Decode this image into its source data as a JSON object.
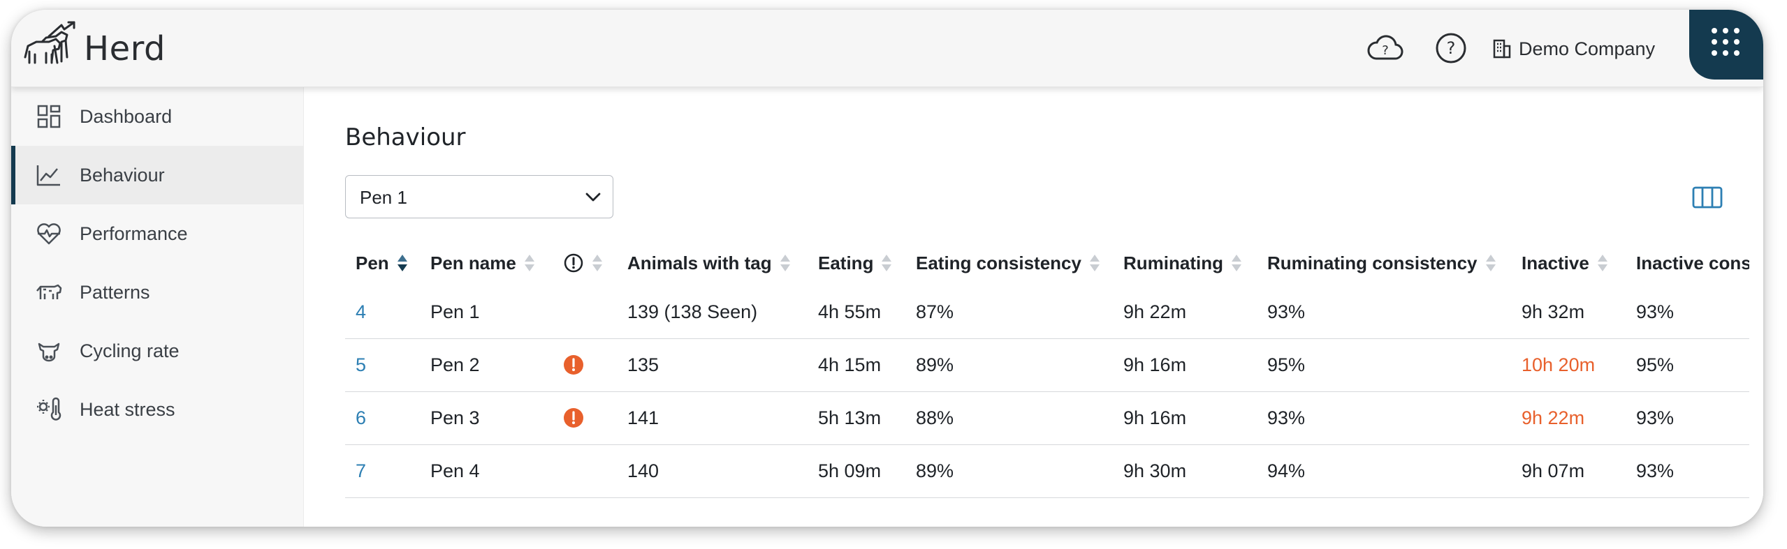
{
  "app": {
    "title": "Herd"
  },
  "header": {
    "company_label": "Demo Company"
  },
  "sidebar": {
    "items": [
      {
        "label": "Dashboard",
        "icon": "dashboard-grid-icon",
        "active": false
      },
      {
        "label": "Behaviour",
        "icon": "line-chart-icon",
        "active": true
      },
      {
        "label": "Performance",
        "icon": "heart-pulse-icon",
        "active": false
      },
      {
        "label": "Patterns",
        "icon": "cow-icon",
        "active": false
      },
      {
        "label": "Cycling rate",
        "icon": "cow-face-icon",
        "active": false
      },
      {
        "label": "Heat stress",
        "icon": "thermometer-icon",
        "active": false
      }
    ]
  },
  "main": {
    "title": "Behaviour",
    "pen_select": {
      "value": "Pen 1"
    },
    "table": {
      "columns": [
        "Pen",
        "Pen name",
        "",
        "Animals with tag",
        "Eating",
        "Eating consistency",
        "Ruminating",
        "Ruminating consistency",
        "Inactive",
        "Inactive cons"
      ],
      "sorted_column": "Pen",
      "sort_direction": "ascending",
      "rows": [
        {
          "pen": "4",
          "pen_name": "Pen 1",
          "alert": false,
          "animals": "139 (138 Seen)",
          "eating": "4h 55m",
          "eating_consistency": "87%",
          "ruminating": "9h 22m",
          "ruminating_consistency": "93%",
          "inactive": "9h 32m",
          "inactive_warning": false,
          "inactive_consistency": "93%"
        },
        {
          "pen": "5",
          "pen_name": "Pen 2",
          "alert": true,
          "animals": "135",
          "eating": "4h 15m",
          "eating_consistency": "89%",
          "ruminating": "9h 16m",
          "ruminating_consistency": "95%",
          "inactive": "10h 20m",
          "inactive_warning": true,
          "inactive_consistency": "95%"
        },
        {
          "pen": "6",
          "pen_name": "Pen 3",
          "alert": true,
          "animals": "141",
          "eating": "5h 13m",
          "eating_consistency": "88%",
          "ruminating": "9h 16m",
          "ruminating_consistency": "93%",
          "inactive": "9h 22m",
          "inactive_warning": true,
          "inactive_consistency": "93%"
        },
        {
          "pen": "7",
          "pen_name": "Pen 4",
          "alert": false,
          "animals": "140",
          "eating": "5h 09m",
          "eating_consistency": "89%",
          "ruminating": "9h 30m",
          "ruminating_consistency": "94%",
          "inactive": "9h 07m",
          "inactive_warning": false,
          "inactive_consistency": "93%"
        }
      ]
    }
  },
  "colors": {
    "brand_dark": "#143a4f",
    "link": "#2d7fb3",
    "warning": "#e8602c"
  }
}
